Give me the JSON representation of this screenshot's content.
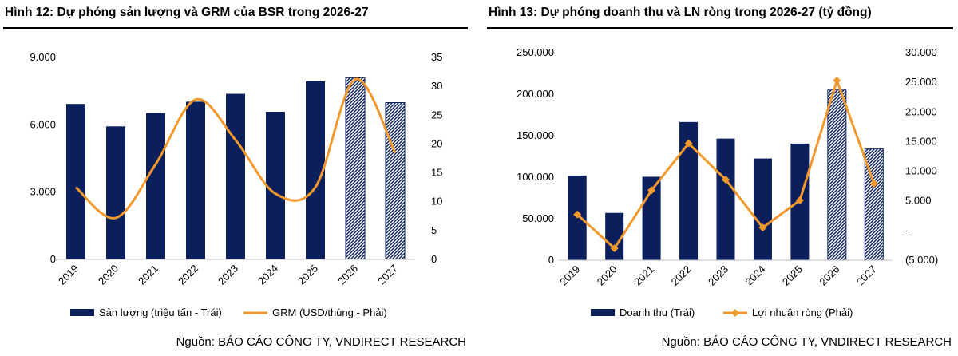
{
  "colors": {
    "bar": "#0a1f5c",
    "line": "#f2992e",
    "hatch_bg": "#ffffff"
  },
  "chart_data": [
    {
      "type": "bar",
      "title": "Hình 12: Dự phóng sản lượng và GRM của BSR trong 2026-27",
      "source": "Nguồn: BÁO CÁO CÔNG TY, VNDIRECT RESEARCH",
      "categories": [
        "2019",
        "2020",
        "2021",
        "2022",
        "2023",
        "2024",
        "2025",
        "2026",
        "2027"
      ],
      "forecast_from_index": 7,
      "y_left": {
        "min": 0,
        "max": 9000,
        "ticks": [
          0,
          3000,
          6000,
          9000
        ],
        "tick_labels": [
          "0",
          "3.000",
          "6.000",
          "9.000"
        ]
      },
      "y_right": {
        "min": 0,
        "max": 35,
        "ticks": [
          0,
          5,
          10,
          15,
          20,
          25,
          30,
          35
        ],
        "tick_labels": [
          "0",
          "5",
          "10",
          "15",
          "20",
          "25",
          "30",
          "35"
        ]
      },
      "line_style": "smooth",
      "series": [
        {
          "name": "Sản lượng (triệu tấn - Trái)",
          "kind": "bar",
          "axis": "left",
          "values": [
            6930,
            5930,
            6520,
            7030,
            7380,
            6580,
            7940,
            8100,
            6990
          ]
        },
        {
          "name": "GRM (USD/thùng - Phải)",
          "kind": "line",
          "axis": "right",
          "values": [
            12.5,
            7.2,
            16.5,
            27.7,
            20.7,
            11.4,
            12.5,
            31.2,
            18.5
          ]
        }
      ],
      "legend_position": "bottom"
    },
    {
      "type": "bar",
      "title": "Hình 13: Dự phóng doanh thu và LN ròng trong 2026-27 (tỷ đồng)",
      "source": "Nguồn: BÁO CÁO CÔNG TY, VNDIRECT RESEARCH",
      "categories": [
        "2019",
        "2020",
        "2021",
        "2022",
        "2023",
        "2024",
        "2025",
        "2026",
        "2027"
      ],
      "forecast_from_index": 7,
      "y_left": {
        "min": 0,
        "max": 250000,
        "ticks": [
          0,
          50000,
          100000,
          150000,
          200000,
          250000
        ],
        "tick_labels": [
          "0",
          "50.000",
          "100.000",
          "150.000",
          "200.000",
          "250.000"
        ]
      },
      "y_right": {
        "min": -5000,
        "max": 30000,
        "ticks": [
          -5000,
          0,
          5000,
          10000,
          15000,
          20000,
          25000,
          30000
        ],
        "tick_labels": [
          "(5.000)",
          "-",
          "5.000",
          "10.000",
          "15.000",
          "20.000",
          "25.000",
          "30.000"
        ]
      },
      "line_style": "straight",
      "series": [
        {
          "name": "Doanh thu (Trái)",
          "kind": "bar",
          "axis": "left",
          "values": [
            102000,
            57000,
            100500,
            166500,
            146500,
            122500,
            140500,
            205000,
            134000
          ]
        },
        {
          "name": "Lợi nhuận ròng (Phải)",
          "kind": "line",
          "axis": "right",
          "values": [
            2700,
            -3000,
            6800,
            14700,
            8600,
            500,
            5100,
            25300,
            7900
          ]
        }
      ],
      "legend_position": "bottom"
    }
  ]
}
